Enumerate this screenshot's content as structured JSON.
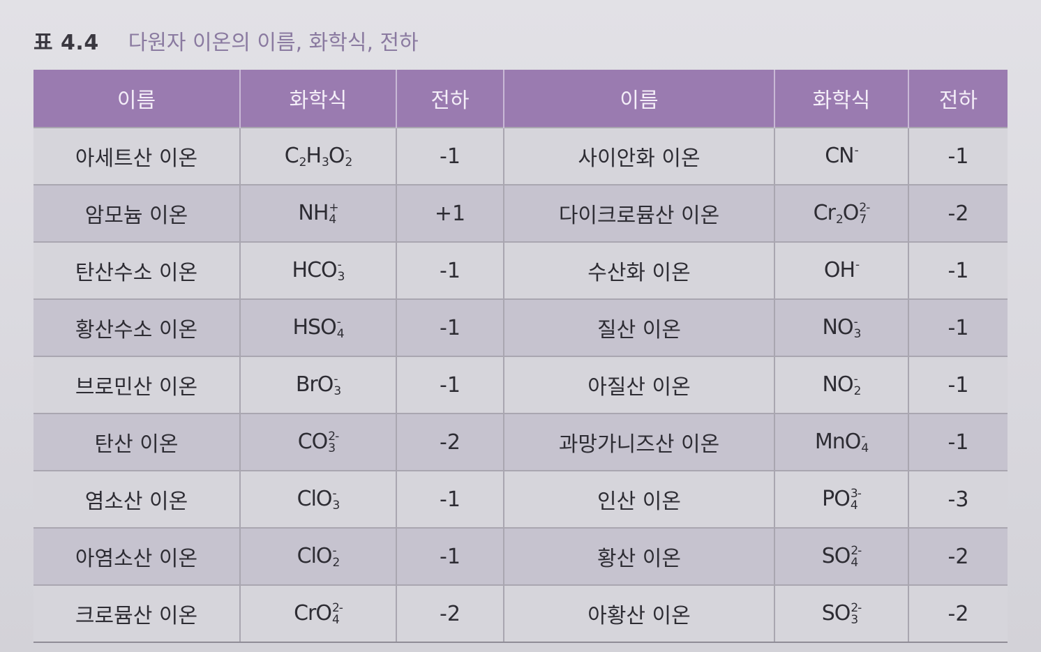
{
  "caption": {
    "number": "표 4.4",
    "title": "다원자 이온의 이름, 화학식, 전하"
  },
  "columns": [
    "이름",
    "화학식",
    "전하",
    "이름",
    "화학식",
    "전하"
  ],
  "rows": [
    {
      "left": {
        "name": "아세트산 이온",
        "formula": [
          [
            "C",
            "2",
            ""
          ],
          [
            "H",
            "3",
            ""
          ],
          [
            "O",
            "2",
            "-"
          ]
        ],
        "charge": "-1"
      },
      "right": {
        "name": "사이안화 이온",
        "formula": [
          [
            "CN",
            "",
            "-"
          ]
        ],
        "charge": "-1"
      }
    },
    {
      "left": {
        "name": "암모늄 이온",
        "formula": [
          [
            "NH",
            "4",
            "+"
          ]
        ],
        "charge": "+1"
      },
      "right": {
        "name": "다이크로뮴산 이온",
        "formula": [
          [
            "Cr",
            "2",
            ""
          ],
          [
            "O",
            "7",
            "2-"
          ]
        ],
        "charge": "-2"
      }
    },
    {
      "left": {
        "name": "탄산수소 이온",
        "formula": [
          [
            "HCO",
            "3",
            "-"
          ]
        ],
        "charge": "-1"
      },
      "right": {
        "name": "수산화 이온",
        "formula": [
          [
            "OH",
            "",
            "-"
          ]
        ],
        "charge": "-1"
      }
    },
    {
      "left": {
        "name": "황산수소 이온",
        "formula": [
          [
            "HSO",
            "4",
            "-"
          ]
        ],
        "charge": "-1"
      },
      "right": {
        "name": "질산 이온",
        "formula": [
          [
            "NO",
            "3",
            "-"
          ]
        ],
        "charge": "-1"
      }
    },
    {
      "left": {
        "name": "브로민산 이온",
        "formula": [
          [
            "BrO",
            "3",
            "-"
          ]
        ],
        "charge": "-1"
      },
      "right": {
        "name": "아질산 이온",
        "formula": [
          [
            "NO",
            "2",
            "-"
          ]
        ],
        "charge": "-1"
      }
    },
    {
      "left": {
        "name": "탄산 이온",
        "formula": [
          [
            "CO",
            "3",
            "2-"
          ]
        ],
        "charge": "-2"
      },
      "right": {
        "name": "과망가니즈산 이온",
        "formula": [
          [
            "MnO",
            "4",
            "-"
          ]
        ],
        "charge": "-1"
      }
    },
    {
      "left": {
        "name": "염소산 이온",
        "formula": [
          [
            "ClO",
            "3",
            "-"
          ]
        ],
        "charge": "-1"
      },
      "right": {
        "name": "인산 이온",
        "formula": [
          [
            "PO",
            "4",
            "3-"
          ]
        ],
        "charge": "-3"
      }
    },
    {
      "left": {
        "name": "아염소산 이온",
        "formula": [
          [
            "ClO",
            "2",
            "-"
          ]
        ],
        "charge": "-1"
      },
      "right": {
        "name": "황산 이온",
        "formula": [
          [
            "SO",
            "4",
            "2-"
          ]
        ],
        "charge": "-2"
      }
    },
    {
      "left": {
        "name": "크로뮴산 이온",
        "formula": [
          [
            "CrO",
            "4",
            "2-"
          ]
        ],
        "charge": "-2"
      },
      "right": {
        "name": "아황산 이온",
        "formula": [
          [
            "SO",
            "3",
            "2-"
          ]
        ],
        "charge": "-2"
      }
    }
  ]
}
